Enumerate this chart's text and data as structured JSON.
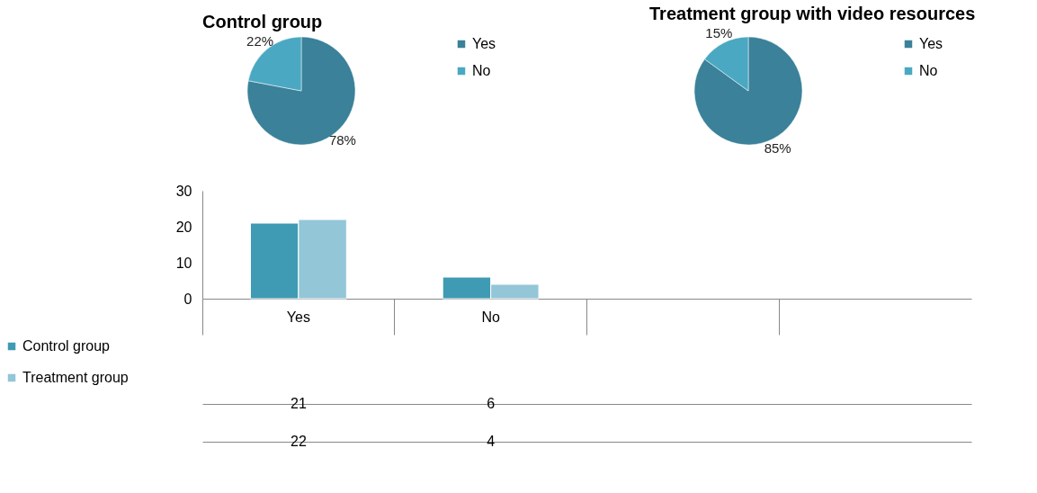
{
  "chart_data": [
    {
      "type": "pie",
      "title": "Control group",
      "categories": [
        "Yes",
        "No"
      ],
      "values": [
        78,
        22
      ],
      "colors": [
        "#3a8199",
        "#4aa8c2"
      ],
      "value_labels": [
        "78%",
        "22%"
      ],
      "legend": "right"
    },
    {
      "type": "pie",
      "title": "Treatment group with video resources",
      "categories": [
        "Yes",
        "No"
      ],
      "values": [
        85,
        15
      ],
      "colors": [
        "#3a8199",
        "#4aa8c2"
      ],
      "value_labels": [
        "85%",
        "15%"
      ],
      "legend": "right"
    },
    {
      "type": "bar",
      "categories": [
        "Yes",
        "No",
        null,
        null
      ],
      "series": [
        {
          "name": "Control group",
          "color": "#3f9ab4",
          "values": [
            21,
            6,
            null,
            null
          ]
        },
        {
          "name": "Treatment group",
          "color": "#93c6d7",
          "values": [
            22,
            4,
            null,
            null
          ]
        }
      ],
      "ylim": [
        0,
        30
      ],
      "yticks": [
        0,
        10,
        20,
        30
      ],
      "grid": false,
      "data_labels": true,
      "legend": "bottom left"
    }
  ]
}
